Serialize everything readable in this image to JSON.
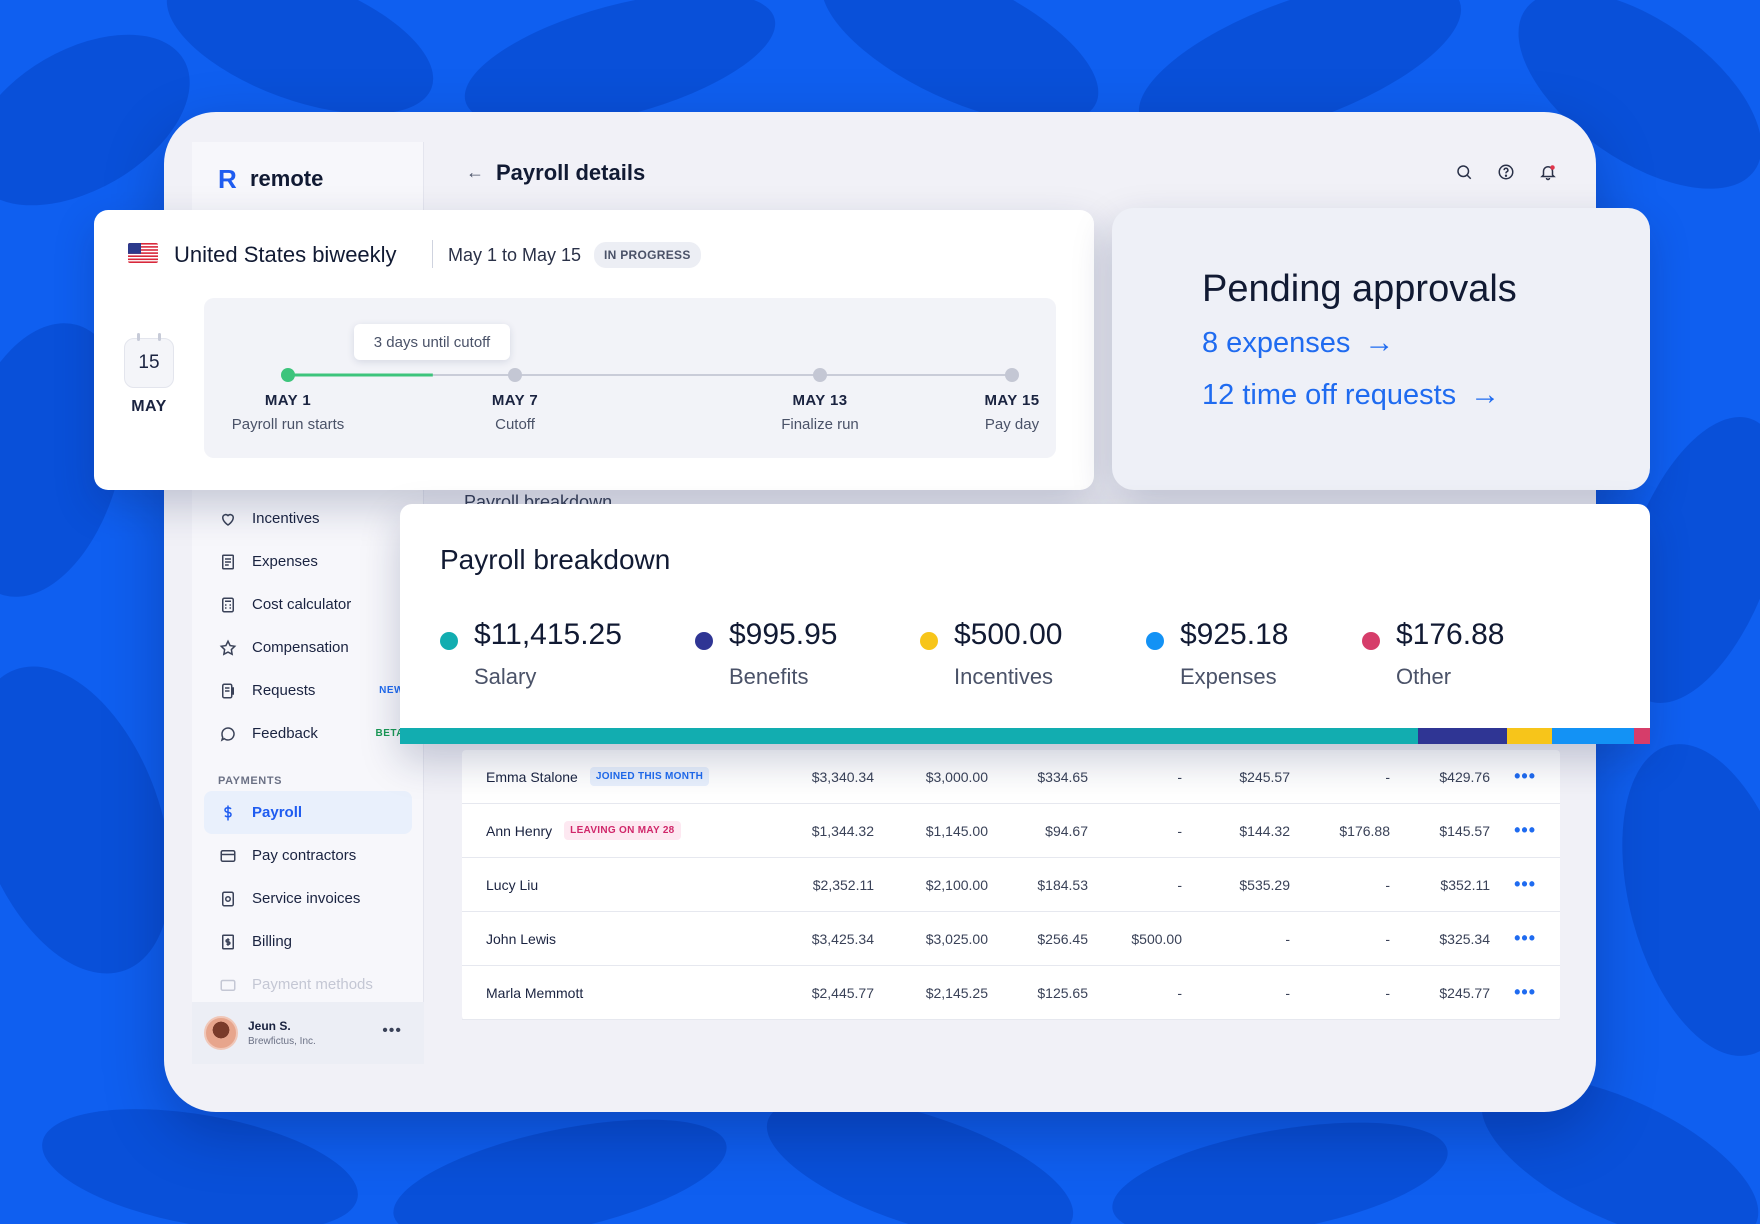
{
  "colors": {
    "background": "#0f5ff0",
    "accent": "#1f6bf0",
    "salary": "#12adb0",
    "benefits": "#2f3594",
    "incentives": "#f7c51a",
    "expenses": "#1392f5",
    "other": "#d63d6a",
    "progress": "#3dc47c"
  },
  "app": {
    "logo_text": "remote",
    "page_title": "Payroll details",
    "ghost_breakdown_title": "Payroll breakdown"
  },
  "sidebar": {
    "items": [
      {
        "label": "Incentives",
        "icon": "heart-icon"
      },
      {
        "label": "Expenses",
        "icon": "receipt-icon"
      },
      {
        "label": "Cost calculator",
        "icon": "calculator-icon"
      },
      {
        "label": "Compensation",
        "icon": "star-icon"
      },
      {
        "label": "Requests",
        "icon": "document-icon",
        "badge": "NEW"
      },
      {
        "label": "Feedback",
        "icon": "chat-bubble-icon",
        "badge": "BETA"
      }
    ],
    "section_payments": "PAYMENTS",
    "payment_items": [
      {
        "label": "Payroll",
        "icon": "dollar-icon"
      },
      {
        "label": "Pay contractors",
        "icon": "card-icon"
      },
      {
        "label": "Service invoices",
        "icon": "invoice-icon"
      },
      {
        "label": "Billing",
        "icon": "bill-icon"
      },
      {
        "label": "Payment methods",
        "icon": "wallet-icon"
      }
    ],
    "user": {
      "name": "Jeun S.",
      "org": "Brewfictus, Inc."
    }
  },
  "payroll_run": {
    "title": "United States biweekly",
    "dates": "May 1 to May 15",
    "status": "IN PROGRESS",
    "calendar_day": "15",
    "calendar_month": "MAY",
    "tooltip": "3 days until cutoff",
    "progress_fraction": 0.2,
    "milestones": [
      {
        "date": "MAY 1",
        "label": "Payroll run starts"
      },
      {
        "date": "MAY 7",
        "label": "Cutoff"
      },
      {
        "date": "MAY 13",
        "label": "Finalize run"
      },
      {
        "date": "MAY 15",
        "label": "Pay day"
      }
    ]
  },
  "pending": {
    "title": "Pending approvals",
    "expenses_link": "8 expenses",
    "timeoff_link": "12 time off requests"
  },
  "breakdown": {
    "title": "Payroll breakdown",
    "items": [
      {
        "value": "$11,415.25",
        "label": "Salary"
      },
      {
        "value": "$995.95",
        "label": "Benefits"
      },
      {
        "value": "$500.00",
        "label": "Incentives"
      },
      {
        "value": "$925.18",
        "label": "Expenses"
      },
      {
        "value": "$176.88",
        "label": "Other"
      }
    ],
    "amounts": [
      11415.25,
      995.95,
      500.0,
      925.18,
      176.88
    ]
  },
  "table": {
    "rows": [
      {
        "name": "Emma Stalone",
        "tag": "JOINED THIS MONTH",
        "tag_type": "joined",
        "c1": "$3,340.34",
        "c2": "$3,000.00",
        "c3": "$334.65",
        "c4": "-",
        "c5": "$245.57",
        "c6": "-",
        "c7": "$429.76"
      },
      {
        "name": "Ann Henry",
        "tag": "LEAVING ON MAY 28",
        "tag_type": "leaving",
        "c1": "$1,344.32",
        "c2": "$1,145.00",
        "c3": "$94.67",
        "c4": "-",
        "c5": "$144.32",
        "c6": "$176.88",
        "c7": "$145.57"
      },
      {
        "name": "Lucy Liu",
        "tag": "",
        "tag_type": "",
        "c1": "$2,352.11",
        "c2": "$2,100.00",
        "c3": "$184.53",
        "c4": "-",
        "c5": "$535.29",
        "c6": "-",
        "c7": "$352.11"
      },
      {
        "name": "John Lewis",
        "tag": "",
        "tag_type": "",
        "c1": "$3,425.34",
        "c2": "$3,025.00",
        "c3": "$256.45",
        "c4": "$500.00",
        "c5": "-",
        "c6": "-",
        "c7": "$325.34"
      },
      {
        "name": "Marla Memmott",
        "tag": "",
        "tag_type": "",
        "c1": "$2,445.77",
        "c2": "$2,145.25",
        "c3": "$125.65",
        "c4": "-",
        "c5": "-",
        "c6": "-",
        "c7": "$245.77"
      }
    ]
  }
}
